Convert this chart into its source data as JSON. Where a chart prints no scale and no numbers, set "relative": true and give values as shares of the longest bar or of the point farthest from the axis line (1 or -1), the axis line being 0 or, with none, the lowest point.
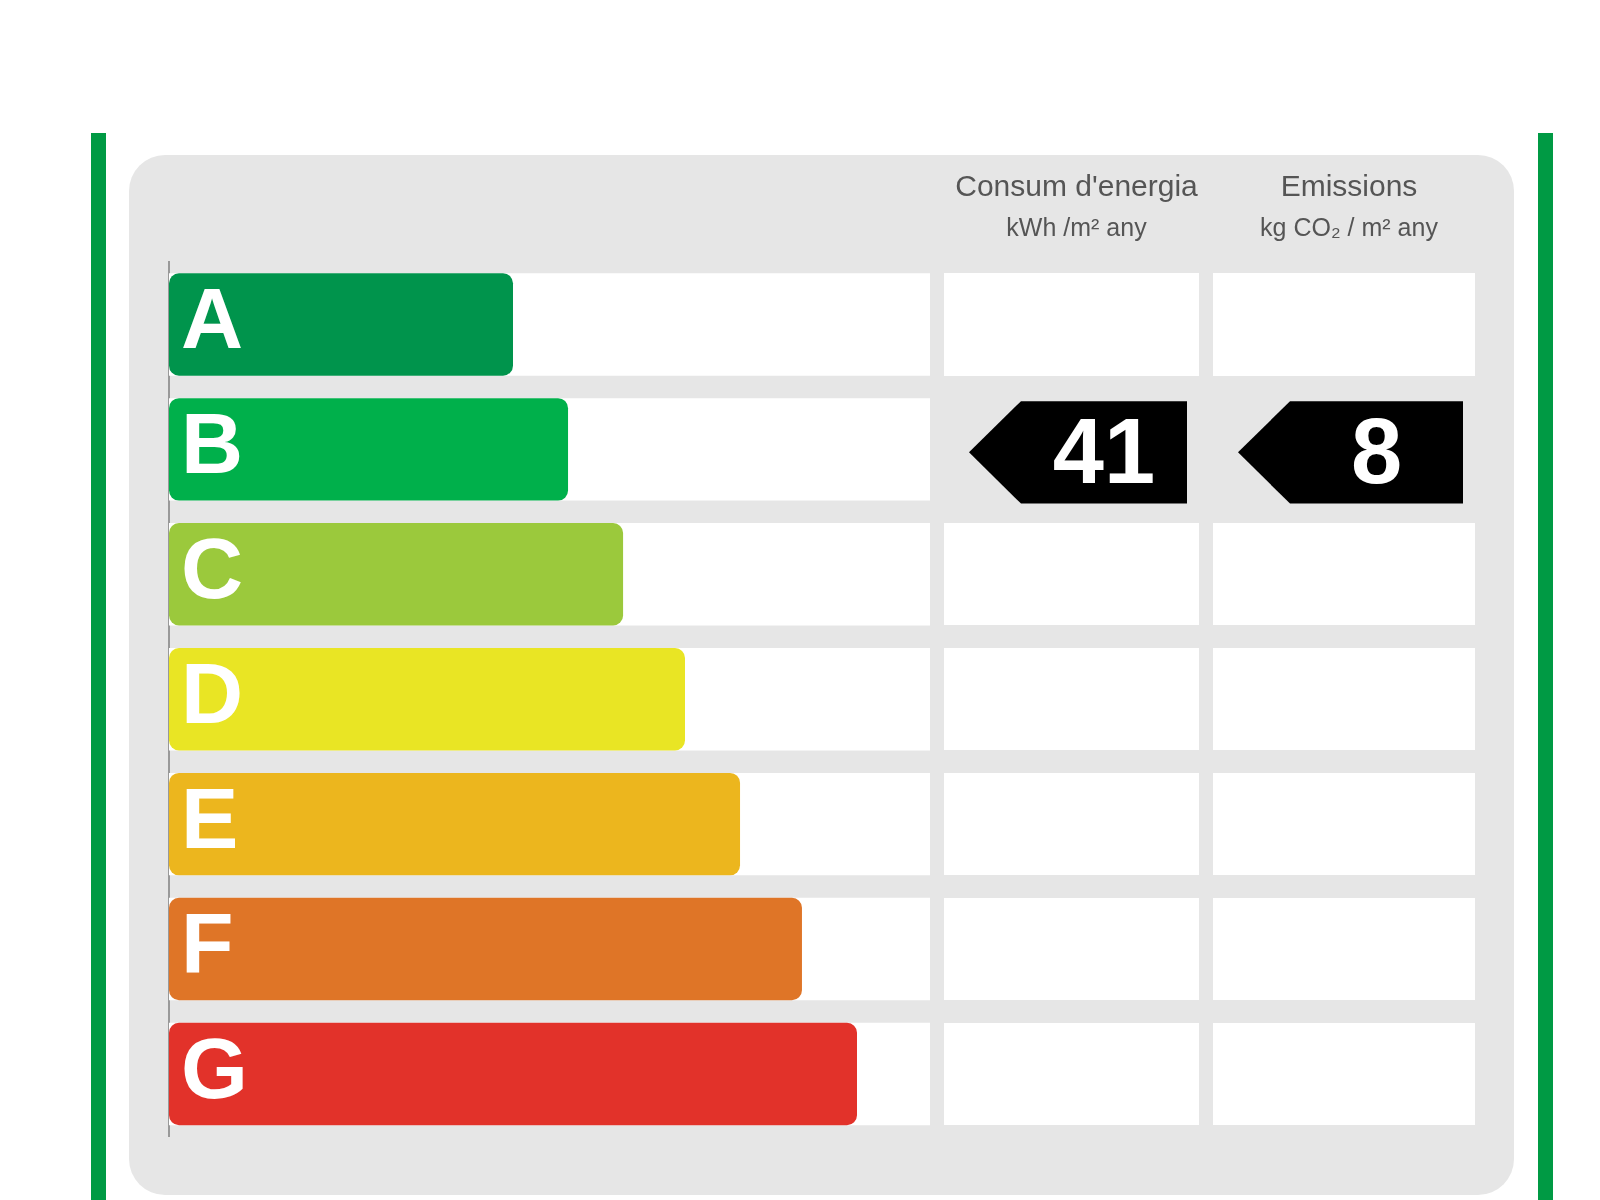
{
  "chart_data": {
    "type": "bar",
    "orientation": "horizontal",
    "relative": true,
    "categories": [
      "A",
      "B",
      "C",
      "D",
      "E",
      "F",
      "G"
    ],
    "values": [
      0.5,
      0.58,
      0.66,
      0.75,
      0.83,
      0.92,
      1
    ],
    "colors": [
      "#00944c",
      "#00b04b",
      "#9bc93c",
      "#e9e524",
      "#ecb61e",
      "#df7527",
      "#e2322a"
    ],
    "annotations": [
      "Consum d'energia",
      "kWh /m² any",
      "Emissions",
      "kg CO₂ / m² any",
      "41",
      "8"
    ],
    "legend": false,
    "grid": false
  }
}
